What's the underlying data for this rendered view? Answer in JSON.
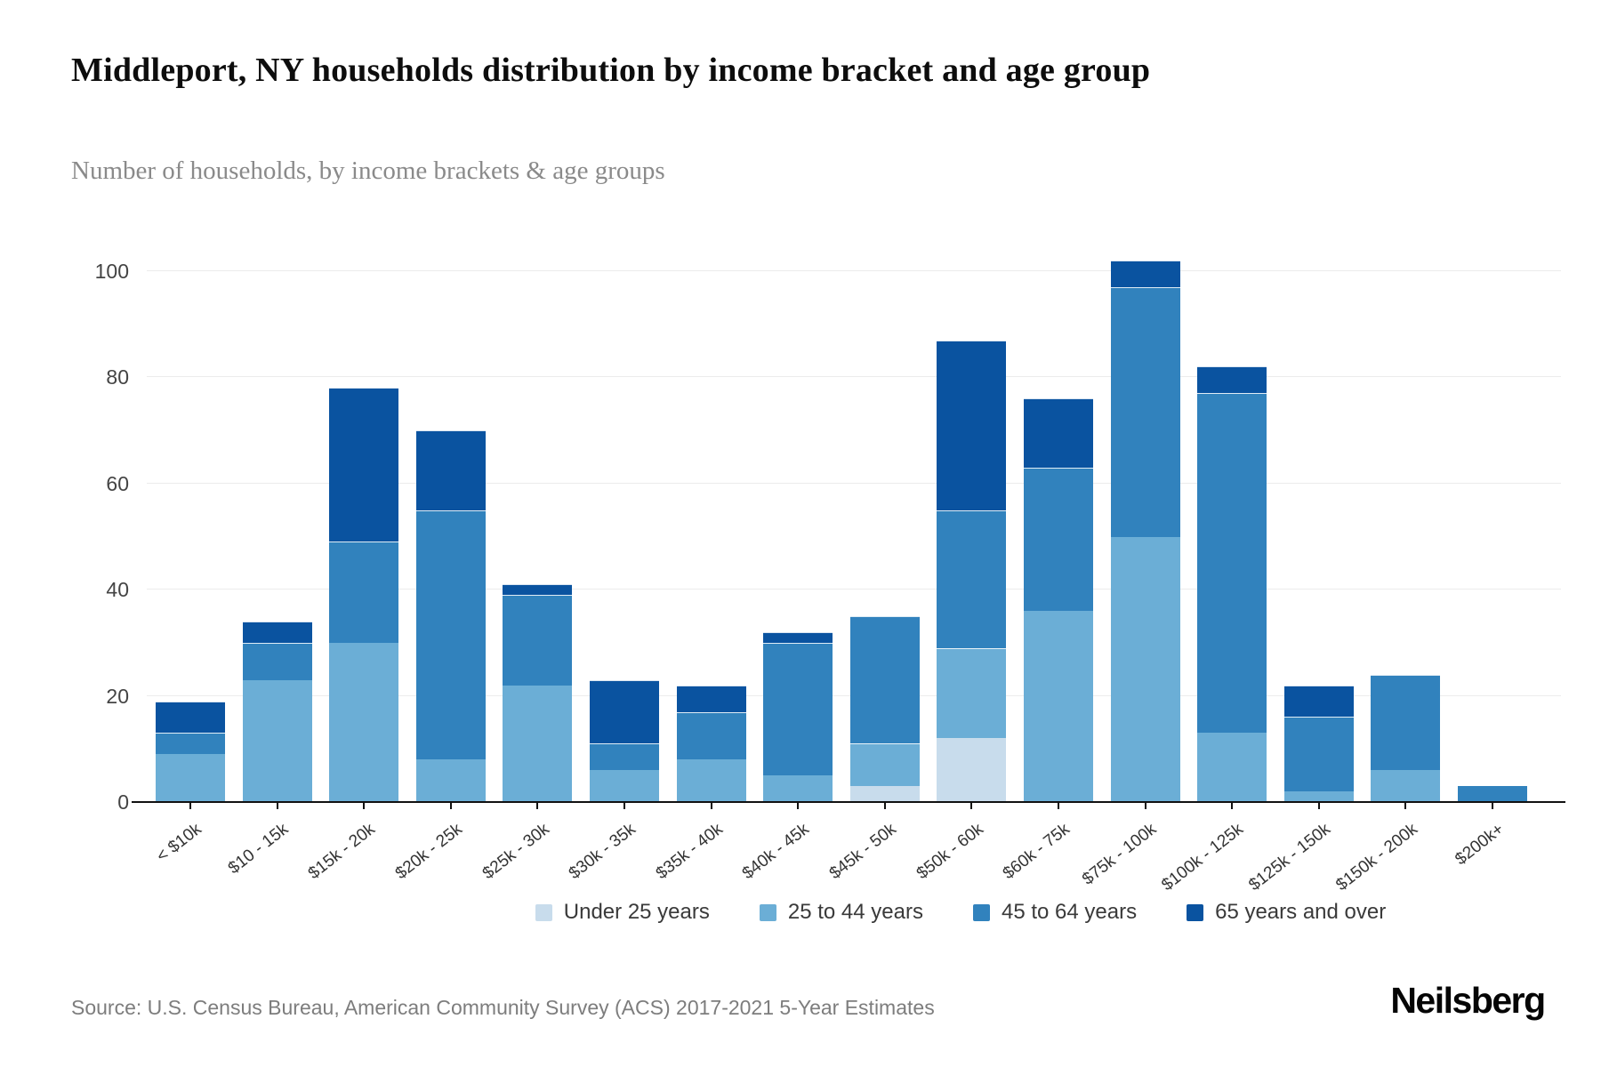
{
  "header": {
    "title": "Middleport, NY households distribution by income bracket and age group",
    "subtitle": "Number of households, by income brackets & age groups"
  },
  "chart_data": {
    "type": "bar",
    "stacked": true,
    "title": "Middleport, NY households distribution by income bracket and age group",
    "xlabel": "",
    "ylabel": "",
    "ylim": [
      0,
      100
    ],
    "yticks": [
      0,
      20,
      40,
      60,
      80,
      100
    ],
    "grid": "horizontal",
    "legend_position": "bottom",
    "categories": [
      "< $10k",
      "$10 - 15k",
      "$15k - 20k",
      "$20k - 25k",
      "$25k - 30k",
      "$30k - 35k",
      "$35k - 40k",
      "$40k - 45k",
      "$45k - 50k",
      "$50k - 60k",
      "$60k - 75k",
      "$75k - 100k",
      "$100k - 125k",
      "$125k - 150k",
      "$150k - 200k",
      "$200k+"
    ],
    "series": [
      {
        "name": "Under 25 years",
        "color": "#c8dcec",
        "values": [
          0,
          0,
          0,
          0,
          0,
          0,
          0,
          0,
          3,
          12,
          0,
          0,
          0,
          0,
          0,
          0
        ]
      },
      {
        "name": "25 to 44 years",
        "color": "#6baed6",
        "values": [
          9,
          23,
          30,
          8,
          22,
          6,
          8,
          5,
          8,
          17,
          36,
          50,
          13,
          2,
          6,
          0
        ]
      },
      {
        "name": "45 to 64 years",
        "color": "#3182bd",
        "values": [
          4,
          7,
          19,
          47,
          17,
          5,
          9,
          25,
          24,
          26,
          27,
          47,
          64,
          14,
          18,
          3
        ]
      },
      {
        "name": "65 years and over",
        "color": "#0a53a0",
        "values": [
          6,
          4,
          29,
          15,
          2,
          12,
          5,
          2,
          0,
          32,
          13,
          5,
          5,
          6,
          0,
          0
        ]
      }
    ],
    "totals": [
      19,
      34,
      78,
      70,
      41,
      23,
      22,
      32,
      35,
      87,
      76,
      102,
      82,
      22,
      24,
      3
    ]
  },
  "footer": {
    "source": "Source: U.S. Census Bureau, American Community Survey (ACS) 2017-2021 5-Year Estimates",
    "brand": "Neilsberg"
  }
}
